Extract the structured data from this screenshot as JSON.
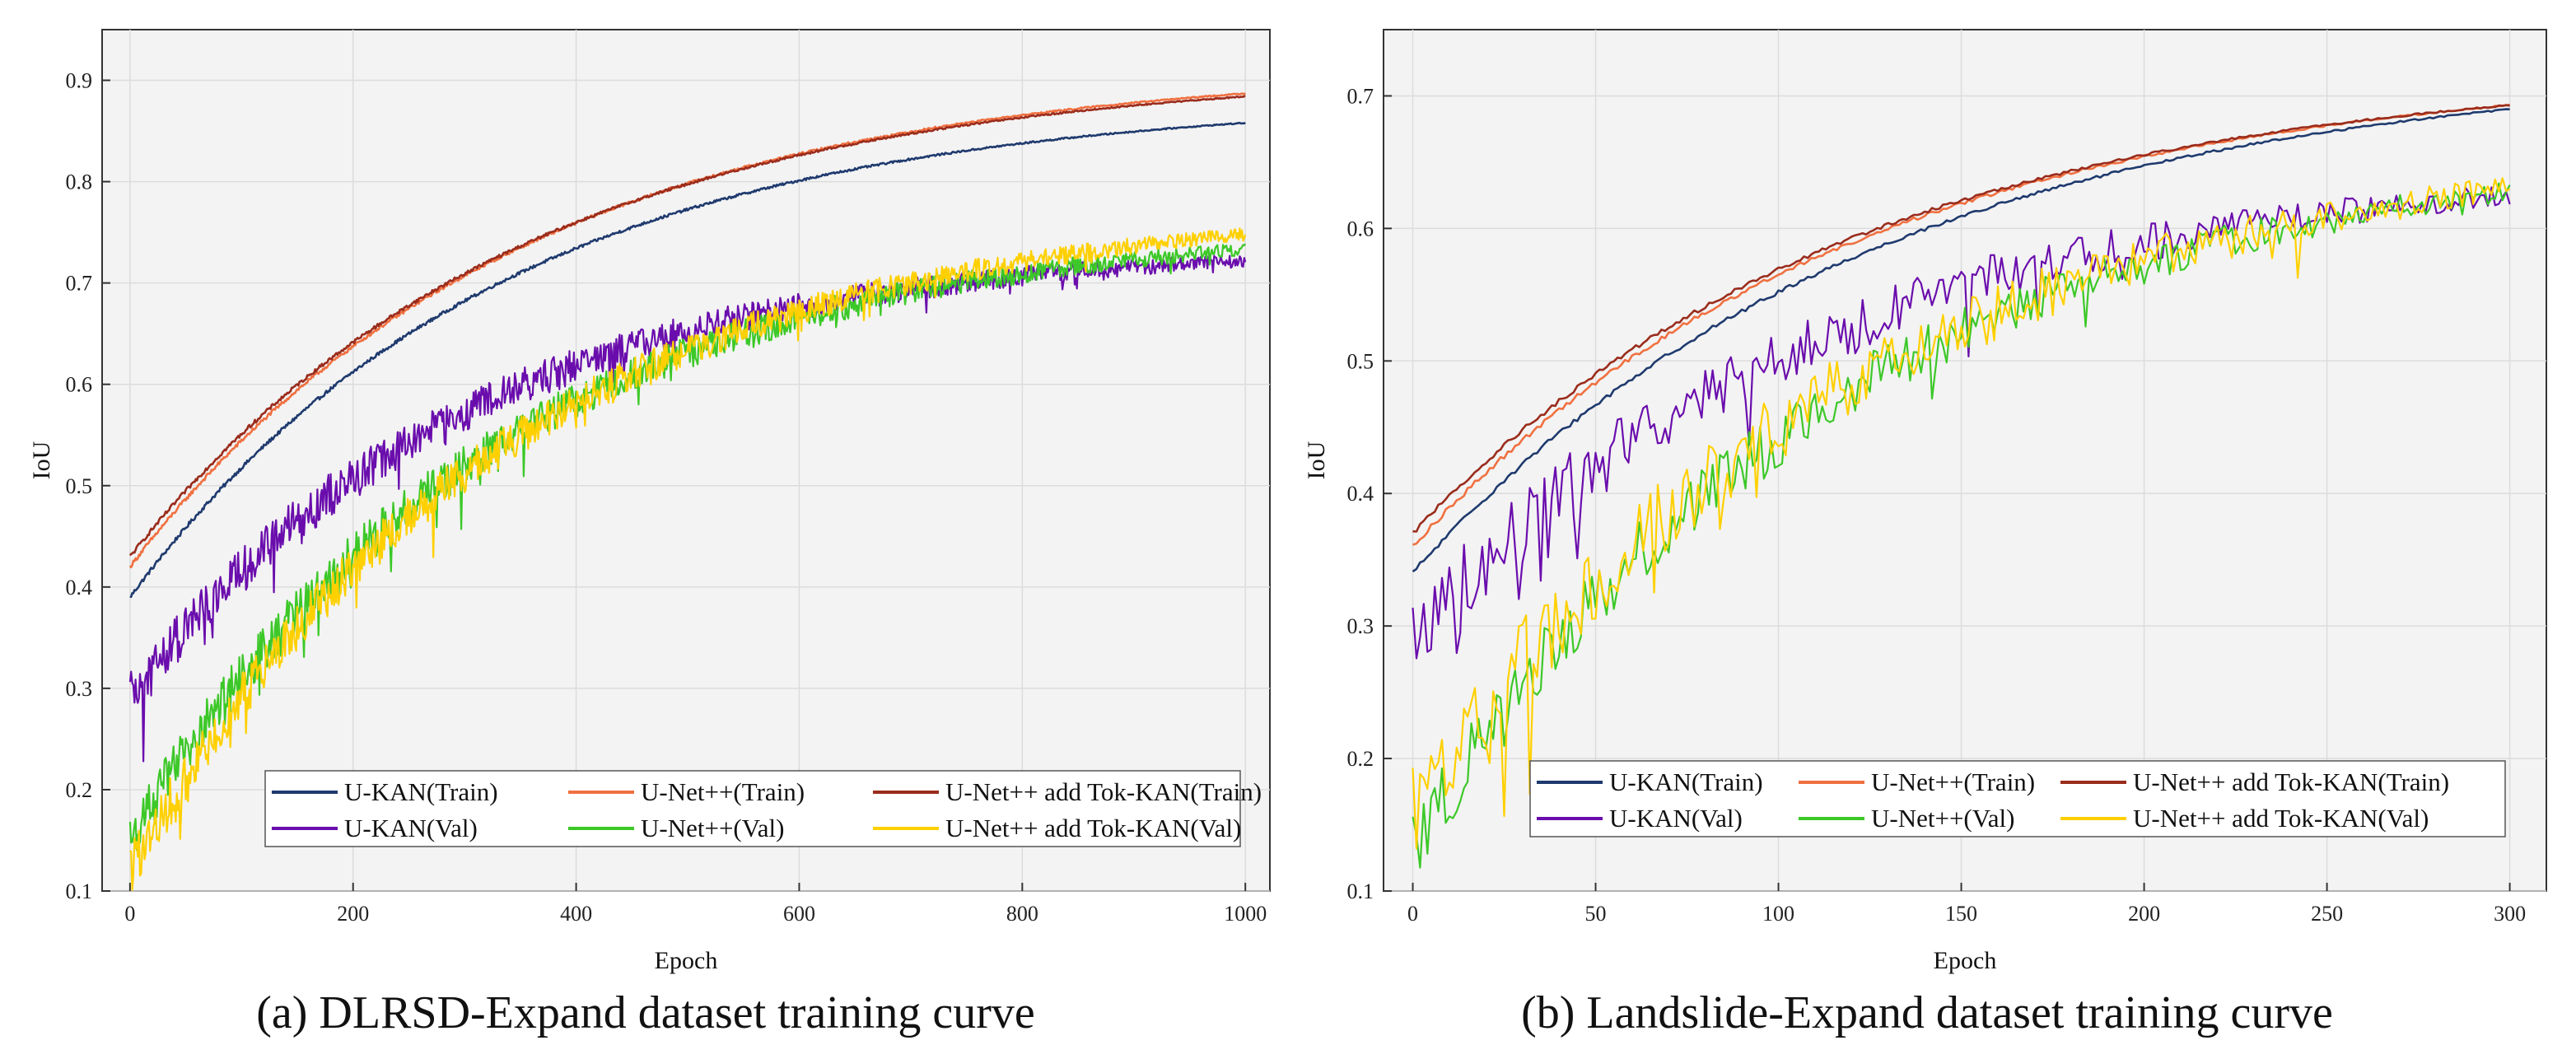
{
  "chart_data": [
    {
      "type": "line",
      "caption": "(a) DLRSD-Expand dataset training curve",
      "xlabel": "Epoch",
      "ylabel": "IoU",
      "xlim": [
        -25,
        1022
      ],
      "ylim": [
        0.1,
        0.95
      ],
      "xticks": [
        "0",
        "200",
        "400",
        "600",
        "800",
        "1000"
      ],
      "xtick_values": [
        0,
        200,
        400,
        600,
        800,
        1000
      ],
      "yticks": [
        "0.1",
        "0.2",
        "0.3",
        "0.4",
        "0.5",
        "0.6",
        "0.7",
        "0.8",
        "0.9"
      ],
      "ytick_values": [
        0.1,
        0.2,
        0.3,
        0.4,
        0.5,
        0.6,
        0.7,
        0.8,
        0.9
      ],
      "grid": true,
      "legend_position": "bottom-right",
      "epochs": 1000,
      "series": [
        {
          "name": "U-KAN(Train)",
          "color": "#1f3a6e",
          "start": 0.39,
          "end": 0.858,
          "rate": 3.0,
          "noise": 0.002,
          "dips": 0
        },
        {
          "name": "U-Net++(Train)",
          "color": "#f07040",
          "start": 0.42,
          "end": 0.887,
          "rate": 2.9,
          "noise": 0.002,
          "dips": 0
        },
        {
          "name": "U-Net++ add Tok-KAN(Train)",
          "color": "#9a2c1c",
          "start": 0.43,
          "end": 0.884,
          "rate": 2.9,
          "noise": 0.002,
          "dips": 0
        },
        {
          "name": "U-KAN(Val)",
          "color": "#6a0dad",
          "start": 0.29,
          "end": 0.722,
          "rate": 3.3,
          "noise": 0.025,
          "dips": 0.05
        },
        {
          "name": "U-Net++(Val)",
          "color": "#3cc828",
          "start": 0.15,
          "end": 0.733,
          "rate": 3.1,
          "noise": 0.025,
          "dips": 0.05
        },
        {
          "name": "U-Net++ add Tok-KAN(Val)",
          "color": "#ffd000",
          "start": 0.12,
          "end": 0.748,
          "rate": 3.0,
          "noise": 0.025,
          "dips": 0.05
        }
      ]
    },
    {
      "type": "line",
      "caption": "(b) Landslide-Expand dataset training curve",
      "xlabel": "Epoch",
      "ylabel": "IoU",
      "xlim": [
        -8,
        310
      ],
      "ylim": [
        0.1,
        0.75
      ],
      "xticks": [
        "0",
        "50",
        "100",
        "150",
        "200",
        "250",
        "300"
      ],
      "xtick_values": [
        0,
        50,
        100,
        150,
        200,
        250,
        300
      ],
      "yticks": [
        "0.1",
        "0.2",
        "0.3",
        "0.4",
        "0.5",
        "0.6",
        "0.7"
      ],
      "ytick_values": [
        0.1,
        0.2,
        0.3,
        0.4,
        0.5,
        0.6,
        0.7
      ],
      "grid": true,
      "legend_position": "bottom-right",
      "epochs": 300,
      "series": [
        {
          "name": "U-KAN(Train)",
          "color": "#1f3a6e",
          "start": 0.34,
          "end": 0.69,
          "rate": 2.4,
          "noise": 0.002,
          "dips": 0
        },
        {
          "name": "U-Net++(Train)",
          "color": "#f07040",
          "start": 0.36,
          "end": 0.693,
          "rate": 2.5,
          "noise": 0.002,
          "dips": 0
        },
        {
          "name": "U-Net++ add Tok-KAN(Train)",
          "color": "#9a2c1c",
          "start": 0.37,
          "end": 0.693,
          "rate": 2.5,
          "noise": 0.002,
          "dips": 0
        },
        {
          "name": "U-KAN(Val)",
          "color": "#6a0dad",
          "start": 0.29,
          "end": 0.625,
          "rate": 2.7,
          "noise": 0.03,
          "dips": 0.06
        },
        {
          "name": "U-Net++(Val)",
          "color": "#3cc828",
          "start": 0.13,
          "end": 0.628,
          "rate": 2.6,
          "noise": 0.03,
          "dips": 0.06
        },
        {
          "name": "U-Net++ add Tok-KAN(Val)",
          "color": "#ffd000",
          "start": 0.16,
          "end": 0.63,
          "rate": 2.5,
          "noise": 0.035,
          "dips": 0.08
        }
      ]
    }
  ]
}
